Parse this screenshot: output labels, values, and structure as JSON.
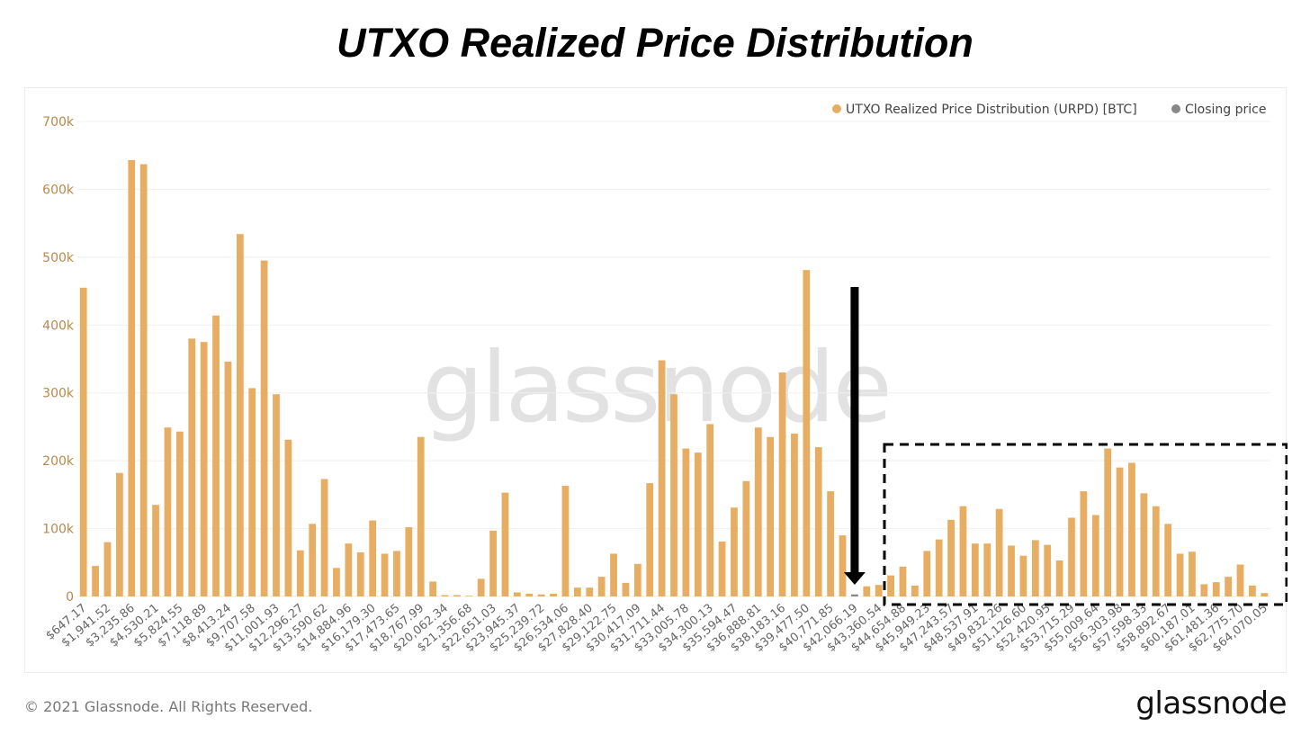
{
  "page": {
    "title": "UTXO Realized Price Distribution",
    "footer": "© 2021 Glassnode. All Rights Reserved.",
    "brand": "glassnode",
    "watermark": "glassnode"
  },
  "chart_data": {
    "type": "bar",
    "colors": {
      "urpd": "#e7ae63",
      "closing": "#888888",
      "arrow": "#000000",
      "axis_text": "#b8894a",
      "grid": "#efefef",
      "x_text": "#666666"
    },
    "legend": [
      {
        "label": "UTXO Realized Price Distribution (URPD) [BTC]",
        "color": "#e7ae63"
      },
      {
        "label": "Closing price",
        "color": "#888888"
      }
    ],
    "legend_position": "top-right",
    "grid": true,
    "ylim": [
      0,
      700000
    ],
    "yticks": [
      {
        "value": 0,
        "label": "0"
      },
      {
        "value": 100000,
        "label": "100k"
      },
      {
        "value": 200000,
        "label": "200k"
      },
      {
        "value": 300000,
        "label": "300k"
      },
      {
        "value": 400000,
        "label": "400k"
      },
      {
        "value": 500000,
        "label": "500k"
      },
      {
        "value": 600000,
        "label": "600k"
      },
      {
        "value": 700000,
        "label": "700k"
      }
    ],
    "xtick_labels": [
      "$647.17",
      "$1,941.52",
      "$3,235.86",
      "$4,530.21",
      "$5,824.55",
      "$7,118.89",
      "$8,413.24",
      "$9,707.58",
      "$11,001.93",
      "$12,296.27",
      "$13,590.62",
      "$14,884.96",
      "$16,179.30",
      "$17,473.65",
      "$18,767.99",
      "$20,062.34",
      "$21,356.68",
      "$22,651.03",
      "$23,945.37",
      "$25,239.72",
      "$26,534.06",
      "$27,828.40",
      "$29,122.75",
      "$30,417.09",
      "$31,711.44",
      "$33,005.78",
      "$34,300.13",
      "$35,594.47",
      "$36,888.81",
      "$38,183.16",
      "$39,477.50",
      "$40,771.85",
      "$42,066.19",
      "$43,360.54",
      "$44,654.88",
      "$45,949.23",
      "$47,243.57",
      "$48,537.91",
      "$49,832.26",
      "$51,126.60",
      "$52,420.95",
      "$53,715.29",
      "$55,009.64",
      "$56,303.98",
      "$57,598.33",
      "$58,892.67",
      "$60,187.01",
      "$61,481.36",
      "$62,775.70",
      "$64,070.05"
    ],
    "values": [
      455000,
      45000,
      80000,
      182000,
      643000,
      637000,
      135000,
      249000,
      243000,
      380000,
      375000,
      414000,
      346000,
      534000,
      307000,
      495000,
      298000,
      231000,
      68000,
      107000,
      173000,
      42000,
      78000,
      65000,
      112000,
      63000,
      67000,
      102000,
      235000,
      22000,
      2000,
      2000,
      1000,
      26000,
      97000,
      153000,
      6000,
      4000,
      3000,
      4000,
      163000,
      13000,
      13000,
      29000,
      63000,
      20000,
      48000,
      167000,
      348000,
      298000,
      218000,
      212000,
      254000,
      81000,
      131000,
      170000,
      249000,
      235000,
      330000,
      240000,
      481000,
      220000,
      155000,
      90000,
      3000,
      15000,
      17000,
      31000,
      44000,
      16000,
      67000,
      84000,
      113000,
      133000,
      78000,
      78000,
      129000,
      75000,
      60000,
      83000,
      76000,
      53000,
      116000,
      155000,
      120000,
      218000,
      190000,
      197000,
      152000,
      133000,
      107000,
      63000,
      66000,
      18000,
      21000,
      29000,
      47000,
      16000,
      5000
    ],
    "closing_price_index": 64,
    "annotations": [
      {
        "type": "arrow",
        "description": "downward arrow pointing at closing price bar"
      },
      {
        "type": "dashed-box",
        "description": "bars above the closing price"
      }
    ]
  }
}
